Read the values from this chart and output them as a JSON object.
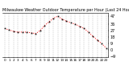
{
  "title": "Milwaukee Weather Outdoor Temperature per Hour (Last 24 Hours)",
  "hours": [
    0,
    1,
    2,
    3,
    4,
    5,
    6,
    7,
    8,
    9,
    10,
    11,
    12,
    13,
    14,
    15,
    16,
    17,
    18,
    19,
    20,
    21,
    22,
    23
  ],
  "temps": [
    30,
    28,
    26,
    25,
    25,
    25,
    24,
    23,
    27,
    34,
    39,
    44,
    47,
    43,
    40,
    38,
    36,
    33,
    30,
    25,
    19,
    14,
    9,
    3
  ],
  "line_color": "#ff0000",
  "marker_color": "#111111",
  "bg_color": "#ffffff",
  "grid_color": "#999999",
  "ylim": [
    -10,
    52
  ],
  "yticks": [
    47,
    36,
    27,
    18,
    9,
    0,
    -9
  ],
  "title_fontsize": 3.5,
  "tick_fontsize": 3.5
}
